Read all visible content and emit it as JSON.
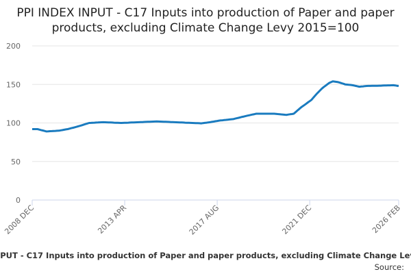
{
  "chart_data": {
    "type": "line",
    "title": "PPI INDEX INPUT - C17 Inputs into production of Paper and paper products, excluding Climate Change Levy 2015=100",
    "source": "Source:",
    "categories": [
      "2008 DEC",
      null,
      null,
      null,
      null,
      null,
      null,
      null,
      null,
      null,
      null,
      null,
      null,
      null,
      null,
      null,
      null,
      null,
      null,
      null,
      null,
      null,
      null,
      null,
      null,
      null,
      null,
      null,
      null,
      null,
      null,
      null,
      null,
      null,
      null,
      null,
      null,
      null,
      null,
      null,
      null,
      null,
      null,
      null,
      null,
      null,
      null,
      null,
      null,
      null,
      null,
      null,
      "2013 APR",
      null,
      null,
      null,
      null,
      null,
      null,
      null,
      null,
      null,
      null,
      null,
      null,
      null,
      null,
      null,
      null,
      null,
      null,
      null,
      null,
      null,
      null,
      null,
      null,
      null,
      null,
      null,
      null,
      null,
      null,
      null,
      null,
      null,
      null,
      null,
      null,
      null,
      null,
      null,
      null,
      null,
      null,
      null,
      null,
      null,
      null,
      null,
      null,
      null,
      null,
      null,
      "2017 AUG",
      null,
      null,
      null,
      null,
      null,
      null,
      null,
      null,
      null,
      null,
      null,
      null,
      null,
      null,
      null,
      null,
      null,
      null,
      null,
      null,
      null,
      null,
      null,
      null,
      null,
      null,
      null,
      null,
      null,
      null,
      null,
      null,
      null,
      null,
      null,
      null,
      null,
      null,
      null,
      null,
      null,
      null,
      null,
      null,
      null,
      null,
      null,
      null,
      null,
      null,
      null,
      "2021 DEC",
      null,
      null,
      null,
      null,
      null,
      null,
      null,
      null,
      null,
      null,
      null,
      null,
      null,
      null,
      null,
      null,
      null,
      null,
      null,
      null,
      null,
      null,
      null,
      null,
      null,
      null,
      null,
      null,
      null,
      null,
      null,
      null,
      null,
      null,
      null,
      null,
      null,
      null,
      null,
      null,
      null,
      null,
      null,
      null,
      null,
      null,
      null,
      null,
      null,
      "2026 FEB"
    ],
    "series": [
      {
        "color": "#1a7bbf",
        "values": [
          92,
          92,
          92,
          92,
          91.4,
          90.8,
          90.2,
          89.6,
          89,
          89.1,
          89.3,
          89.4,
          89.6,
          89.7,
          89.9,
          90,
          90.4,
          90.8,
          91.2,
          91.6,
          92,
          92.6,
          93.2,
          93.8,
          94.4,
          95,
          95.7,
          96.4,
          97.1,
          97.9,
          98.6,
          99.3,
          100,
          100.1,
          100.3,
          100.4,
          100.5,
          100.6,
          100.8,
          100.9,
          101,
          100.9,
          100.8,
          100.7,
          100.6,
          100.5,
          100.4,
          100.3,
          100.2,
          100.1,
          100,
          100.1,
          100.2,
          100.3,
          100.4,
          100.5,
          100.6,
          100.7,
          100.8,
          100.9,
          101,
          101.1,
          101.2,
          101.3,
          101.4,
          101.5,
          101.6,
          101.7,
          101.8,
          101.9,
          102,
          101.9,
          101.8,
          101.7,
          101.6,
          101.5,
          101.4,
          101.3,
          101.2,
          101.1,
          101,
          100.9,
          100.8,
          100.7,
          100.6,
          100.5,
          100.4,
          100.3,
          100.2,
          100.1,
          100,
          99.9,
          99.8,
          99.7,
          99.6,
          99.5,
          99.8,
          100.1,
          100.4,
          100.7,
          101,
          101.4,
          101.8,
          102.2,
          102.6,
          103,
          103.3,
          103.5,
          103.8,
          104,
          104.3,
          104.5,
          104.8,
          105,
          105.6,
          106.1,
          106.7,
          107.3,
          107.9,
          108.4,
          109,
          109.5,
          110,
          110.5,
          111,
          111.5,
          112,
          112,
          112,
          112,
          112,
          112,
          112,
          112,
          112,
          112,
          112,
          111.8,
          111.6,
          111.4,
          111.1,
          110.9,
          110.7,
          110.5,
          110.9,
          111.3,
          111.6,
          112,
          114,
          116,
          118,
          120,
          121.7,
          123.3,
          125,
          126.7,
          128.3,
          130,
          132.7,
          135.3,
          138,
          140.3,
          142.7,
          145,
          146.8,
          148.5,
          150.3,
          152,
          153,
          154,
          153.7,
          153.3,
          153,
          152.3,
          151.5,
          150.8,
          150,
          149.8,
          149.5,
          149.3,
          149,
          148.5,
          148,
          147.5,
          147,
          147.3,
          147.5,
          147.8,
          148,
          148.1,
          148.1,
          148.2,
          148.2,
          148.3,
          148.3,
          148.4,
          148.4,
          148.5,
          148.6,
          148.7,
          148.8,
          148.8,
          148.9,
          149,
          148.7,
          148.3,
          148
        ]
      }
    ],
    "ylim": [
      0,
      200
    ],
    "yticks": [
      0,
      50,
      100,
      150,
      200
    ],
    "grid": true
  }
}
